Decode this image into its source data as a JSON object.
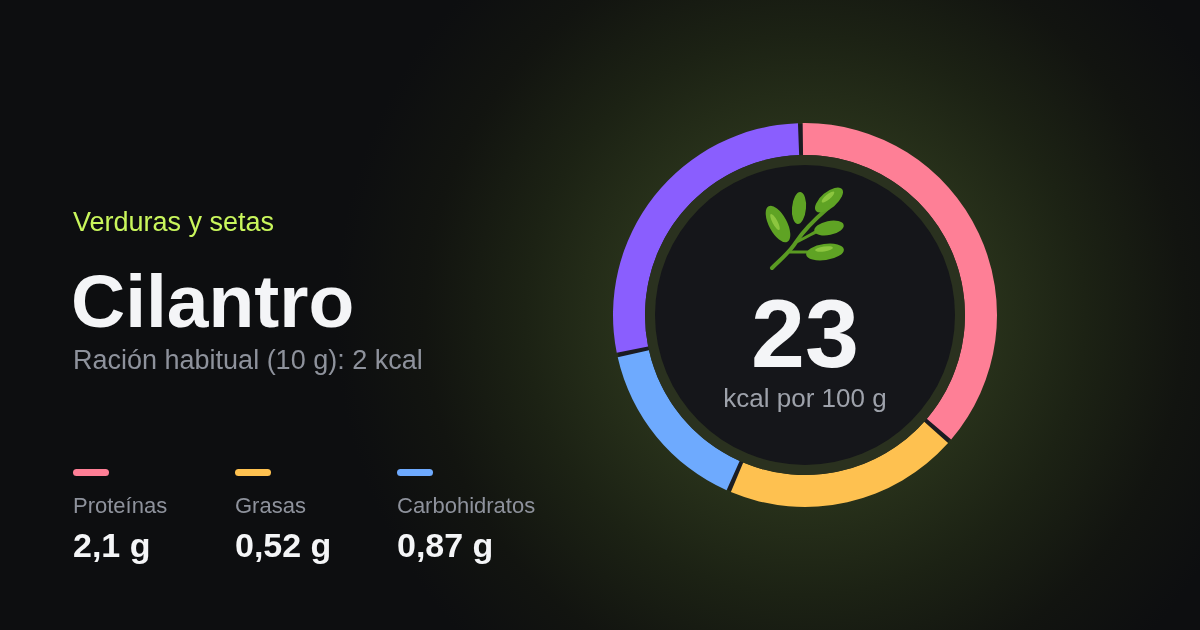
{
  "chart_data": {
    "type": "donut",
    "title": "Cilantro",
    "subtitle": "Ración habitual (10 g): 2 kcal",
    "annotations": [
      "Verduras y setas",
      "23",
      "kcal por 100 g",
      "2,1 g",
      "0,52 g",
      "0,87 g"
    ],
    "categories": [
      "Proteínas",
      "Grasas",
      "Carbohidratos",
      null
    ],
    "values": [
      37,
      20,
      15,
      28
    ],
    "colors": [
      "#fe7f96",
      "#fec150",
      "#6eaafe",
      "#8a5efe"
    ],
    "legend": "bottom left"
  }
}
